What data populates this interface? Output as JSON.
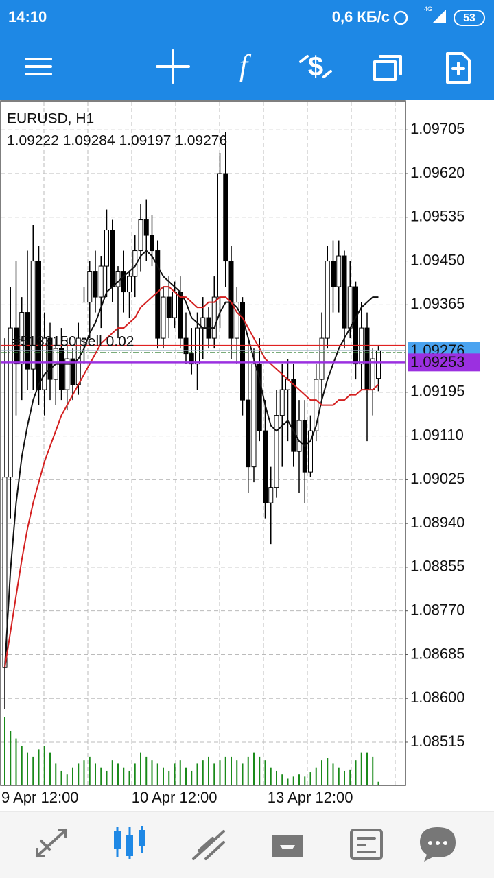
{
  "status": {
    "time": "14:10",
    "speed": "0,6 КБ/с",
    "network": "4G",
    "battery": "53"
  },
  "chart_data": {
    "type": "candlestick",
    "title": "EURUSD, H1",
    "quote": "1.09222 1.09284 1.09197 1.09276",
    "categories": [
      "9 Apr 12:00",
      null,
      null,
      null,
      null,
      null,
      null,
      null,
      null,
      null,
      null,
      null,
      null,
      null,
      null,
      null,
      null,
      null,
      null,
      null,
      null,
      null,
      null,
      "10 Apr 12:00",
      null,
      null,
      null,
      null,
      null,
      null,
      null,
      null,
      null,
      null,
      null,
      null,
      null,
      null,
      null,
      null,
      null,
      null,
      null,
      null,
      null,
      null,
      null,
      "13 Apr 12:00",
      null,
      null,
      null,
      null,
      null,
      null,
      null,
      null,
      null,
      null,
      null,
      null,
      null,
      null,
      null,
      null,
      null,
      null,
      null
    ],
    "open": [
      1.0866,
      1.0903,
      1.0932,
      1.0925,
      1.0935,
      1.0924,
      1.0945,
      1.092,
      1.093,
      1.0922,
      1.0928,
      1.092,
      1.0926,
      1.0921,
      1.093,
      1.0937,
      1.0943,
      1.0938,
      1.0944,
      1.0951,
      1.094,
      1.0943,
      1.0939,
      1.0942,
      1.0947,
      1.0953,
      1.095,
      1.0947,
      1.093,
      1.0938,
      1.0934,
      1.0939,
      1.093,
      1.0927,
      1.0925,
      1.0932,
      1.0934,
      1.093,
      1.0938,
      1.0962,
      1.0945,
      1.093,
      1.0937,
      1.0918,
      1.0905,
      1.0925,
      1.0912,
      1.0898,
      1.0901,
      1.0915,
      1.092,
      1.0922,
      1.0908,
      1.0914,
      1.0904,
      1.0912,
      1.0922,
      1.093,
      1.0945,
      1.094,
      1.0946,
      1.0932,
      1.094,
      1.0925,
      1.0932,
      1.092,
      1.09222
    ],
    "high": [
      1.093,
      1.094,
      1.0945,
      1.0938,
      1.0947,
      1.0952,
      1.0948,
      1.0935,
      1.0933,
      1.093,
      1.0932,
      1.093,
      1.0928,
      1.0933,
      1.094,
      1.0945,
      1.0947,
      1.0946,
      1.0955,
      1.0953,
      1.0944,
      1.0947,
      1.0943,
      1.095,
      1.0956,
      1.0957,
      1.0954,
      1.0949,
      1.094,
      1.0942,
      1.0941,
      1.0942,
      1.0935,
      1.0932,
      1.0935,
      1.0938,
      1.0936,
      1.0942,
      1.0966,
      1.097,
      1.0948,
      1.094,
      1.0938,
      1.093,
      1.0928,
      1.093,
      1.0918,
      1.0905,
      1.092,
      1.0925,
      1.0926,
      1.0925,
      1.0918,
      1.0918,
      1.0915,
      1.0925,
      1.0935,
      1.0948,
      1.0949,
      1.0949,
      1.0947,
      1.0945,
      1.0941,
      1.0937,
      1.0935,
      1.0928,
      1.09284
    ],
    "low": [
      1.0858,
      1.0895,
      1.0915,
      1.0918,
      1.092,
      1.092,
      1.0917,
      1.0915,
      1.0918,
      1.0917,
      1.0918,
      1.0916,
      1.0918,
      1.0919,
      1.0925,
      1.093,
      1.0935,
      1.0932,
      1.0938,
      1.0937,
      1.093,
      1.0935,
      1.0934,
      1.0938,
      1.0943,
      1.0945,
      1.0944,
      1.0928,
      1.0928,
      1.093,
      1.0932,
      1.0928,
      1.0925,
      1.0923,
      1.092,
      1.0926,
      1.0928,
      1.0928,
      1.0932,
      1.094,
      1.0926,
      1.0925,
      1.0915,
      1.09,
      1.0902,
      1.091,
      1.0895,
      1.089,
      1.0899,
      1.0905,
      1.091,
      1.0905,
      1.09,
      1.0898,
      1.0903,
      1.091,
      1.0918,
      1.0928,
      1.0935,
      1.0935,
      1.0928,
      1.093,
      1.0922,
      1.092,
      1.091,
      1.0915,
      1.09197
    ],
    "close": [
      1.0903,
      1.0932,
      1.0925,
      1.0935,
      1.0924,
      1.0945,
      1.092,
      1.093,
      1.0922,
      1.0928,
      1.092,
      1.0926,
      1.0921,
      1.093,
      1.0937,
      1.0943,
      1.0938,
      1.0944,
      1.0951,
      1.094,
      1.0943,
      1.0939,
      1.0942,
      1.0947,
      1.0953,
      1.095,
      1.0947,
      1.093,
      1.0938,
      1.0934,
      1.0939,
      1.093,
      1.0927,
      1.0925,
      1.0932,
      1.0934,
      1.093,
      1.0938,
      1.0962,
      1.0945,
      1.093,
      1.0937,
      1.0918,
      1.0905,
      1.0925,
      1.0912,
      1.0898,
      1.0901,
      1.0915,
      1.092,
      1.0922,
      1.0908,
      1.0914,
      1.0904,
      1.0912,
      1.0922,
      1.093,
      1.0945,
      1.094,
      1.0946,
      1.0932,
      1.094,
      1.0925,
      1.0932,
      1.092,
      1.0926,
      1.09276
    ],
    "moving_averages": [
      {
        "color": "#111111",
        "values": [
          1.0866,
          1.0885,
          1.0898,
          1.0907,
          1.0913,
          1.0918,
          1.0921,
          1.0923,
          1.0924,
          1.0925,
          1.0925,
          1.0925,
          1.0925,
          1.0926,
          1.0928,
          1.0931,
          1.0933,
          1.0936,
          1.0939,
          1.094,
          1.0941,
          1.0942,
          1.0943,
          1.0944,
          1.0946,
          1.0947,
          1.0946,
          1.0944,
          1.0942,
          1.0941,
          1.094,
          1.0939,
          1.0937,
          1.0934,
          1.0933,
          1.0932,
          1.0932,
          1.0932,
          1.0935,
          1.0937,
          1.0937,
          1.0936,
          1.0934,
          1.093,
          1.0926,
          1.0922,
          1.0917,
          1.0913,
          1.0912,
          1.0913,
          1.0914,
          1.0912,
          1.091,
          1.0909,
          1.091,
          1.0913,
          1.0918,
          1.0922,
          1.0925,
          1.0928,
          1.093,
          1.0932,
          1.0934,
          1.0936,
          1.0937,
          1.0938,
          1.0938
        ]
      },
      {
        "color": "#d42020",
        "values": [
          1.0866,
          1.0873,
          1.088,
          1.0887,
          1.0893,
          1.0898,
          1.0902,
          1.0906,
          1.0909,
          1.0912,
          1.0915,
          1.0917,
          1.0919,
          1.0921,
          1.0923,
          1.0925,
          1.0927,
          1.0929,
          1.093,
          1.0931,
          1.0932,
          1.0932,
          1.0933,
          1.0934,
          1.0936,
          1.0937,
          1.0938,
          1.0939,
          1.094,
          1.094,
          1.0939,
          1.0938,
          1.0938,
          1.0937,
          1.0936,
          1.0936,
          1.0937,
          1.0937,
          1.0938,
          1.0938,
          1.0937,
          1.0935,
          1.0934,
          1.0932,
          1.093,
          1.0928,
          1.0926,
          1.0925,
          1.0924,
          1.0923,
          1.0922,
          1.0921,
          1.092,
          1.0919,
          1.0918,
          1.0918,
          1.0917,
          1.0917,
          1.0917,
          1.0918,
          1.0918,
          1.0919,
          1.0919,
          1.092,
          1.092,
          1.092,
          1.0921
        ]
      }
    ],
    "volumes": {
      "color": "#1a8a1a",
      "values": [
        95,
        75,
        65,
        55,
        45,
        40,
        50,
        55,
        45,
        30,
        20,
        15,
        25,
        30,
        35,
        40,
        30,
        25,
        20,
        35,
        30,
        25,
        20,
        30,
        45,
        40,
        35,
        30,
        25,
        20,
        30,
        35,
        25,
        20,
        30,
        35,
        40,
        30,
        35,
        40,
        40,
        35,
        30,
        40,
        45,
        40,
        35,
        25,
        20,
        15,
        10,
        12,
        15,
        12,
        18,
        25,
        35,
        38,
        30,
        25,
        20,
        22,
        35,
        45,
        45,
        40,
        5
      ]
    },
    "price_lines": [
      {
        "value": 1.09286,
        "color": "#e02020"
      },
      {
        "value": 1.09272,
        "color": "#2a7a2a",
        "label": "#5133150 sell 0.02"
      },
      {
        "value": 1.09276,
        "color": "#9ab0c0",
        "box": "#4aa3f0"
      },
      {
        "value": 1.09253,
        "color": "#9b30e0",
        "box": "#9b30e0"
      }
    ],
    "ylim": [
      1.08431,
      1.0976
    ],
    "yticks": [
      {
        "value": 1.09705,
        "label": "1.09705"
      },
      {
        "value": 1.0962,
        "label": "1.09620"
      },
      {
        "value": 1.09535,
        "label": "1.09535"
      },
      {
        "value": 1.0945,
        "label": "1.09450"
      },
      {
        "value": 1.09365,
        "label": "1.09365"
      },
      {
        "value": 1.09195,
        "label": "1.09195"
      },
      {
        "value": 1.0911,
        "label": "1.09110"
      },
      {
        "value": 1.09025,
        "label": "1.09025"
      },
      {
        "value": 1.0894,
        "label": "1.08940"
      },
      {
        "value": 1.08855,
        "label": "1.08855"
      },
      {
        "value": 1.0877,
        "label": "1.08770"
      },
      {
        "value": 1.08685,
        "label": "1.08685"
      },
      {
        "value": 1.086,
        "label": "1.08600"
      },
      {
        "value": 1.08515,
        "label": "1.08515"
      }
    ],
    "grid": true
  }
}
